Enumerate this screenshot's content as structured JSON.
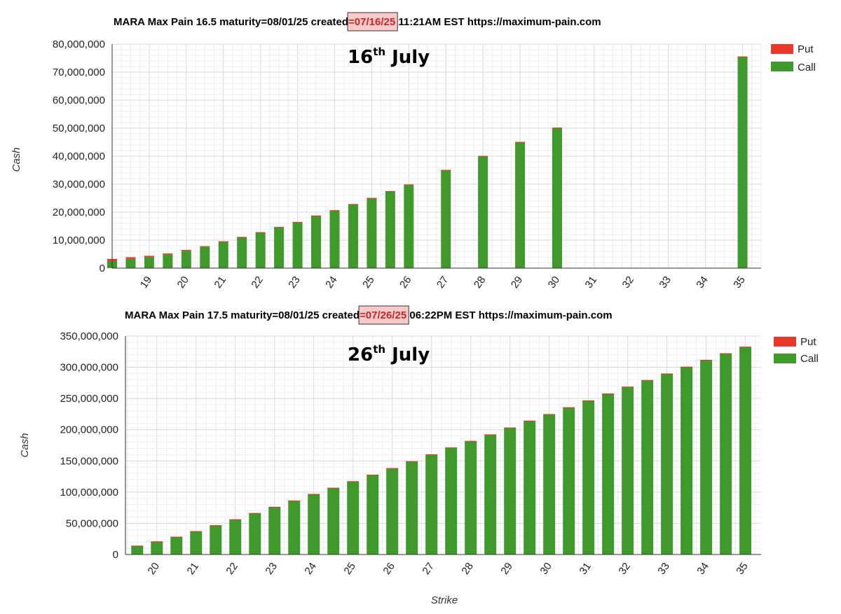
{
  "chart_data": [
    {
      "type": "bar",
      "stacked": true,
      "title_parts": [
        "MARA Max Pain 16.5 maturity=08/01/25 created",
        "=07/16/25",
        " 11:21AM EST https://maximum-pain.com"
      ],
      "annotation": {
        "day": "16",
        "sup": "th",
        "month": " July"
      },
      "highlight_color": "#f8caca",
      "ylabel": "Cash",
      "xlabel": "",
      "ylim": [
        0,
        80000000
      ],
      "yticks": [
        0,
        10000000,
        20000000,
        30000000,
        40000000,
        50000000,
        60000000,
        70000000,
        80000000
      ],
      "ytick_labels": [
        "0",
        "10,000,000",
        "20,000,000",
        "30,000,000",
        "40,000,000",
        "50,000,000",
        "60,000,000",
        "70,000,000",
        "80,000,000"
      ],
      "xlim": [
        18,
        35.5
      ],
      "xtick_labels": [
        "19",
        "20",
        "21",
        "22",
        "23",
        "24",
        "25",
        "26",
        "27",
        "28",
        "29",
        "30",
        "31",
        "32",
        "33",
        "34",
        "35"
      ],
      "x": [
        18,
        18.5,
        19,
        19.5,
        20,
        20.5,
        21,
        21.5,
        22,
        22.5,
        23,
        23.5,
        24,
        24.5,
        25,
        25.5,
        26,
        27,
        28,
        29,
        30,
        35
      ],
      "series": [
        {
          "name": "Put",
          "color": "#e8392b",
          "values": [
            800000,
            600000,
            500000,
            350000,
            300000,
            250000,
            200000,
            150000,
            150000,
            120000,
            100000,
            100000,
            100000,
            100000,
            100000,
            100000,
            100000,
            100000,
            100000,
            100000,
            100000,
            100000
          ]
        },
        {
          "name": "Call",
          "color": "#3f9a2b",
          "values": [
            2500000,
            3300000,
            3900000,
            4900000,
            6200000,
            7600000,
            9400000,
            11000000,
            12700000,
            14600000,
            16400000,
            18700000,
            20600000,
            22800000,
            25000000,
            27400000,
            29800000,
            35000000,
            40000000,
            45000000,
            50100000,
            75500000
          ]
        }
      ],
      "legend_position": "right",
      "grid": true
    },
    {
      "type": "bar",
      "stacked": true,
      "title_parts": [
        "MARA Max Pain 17.5 maturity=08/01/25 created",
        "=07/26/25",
        " 06:22PM EST https://maximum-pain.com"
      ],
      "annotation": {
        "day": "26",
        "sup": "th",
        "month": " July"
      },
      "highlight_color": "#f8caca",
      "ylabel": "Cash",
      "xlabel": "Strike",
      "ylim": [
        0,
        350000000
      ],
      "yticks": [
        0,
        50000000,
        100000000,
        150000000,
        200000000,
        250000000,
        300000000,
        350000000
      ],
      "ytick_labels": [
        "0",
        "50,000,000",
        "100,000,000",
        "150,000,000",
        "200,000,000",
        "250,000,000",
        "300,000,000",
        "350,000,000"
      ],
      "xlim": [
        19.2,
        35.4
      ],
      "xtick_labels": [
        "20",
        "21",
        "22",
        "23",
        "24",
        "25",
        "26",
        "27",
        "28",
        "29",
        "30",
        "31",
        "32",
        "33",
        "34",
        "35"
      ],
      "x": [
        19.5,
        20,
        20.5,
        21,
        21.5,
        22,
        22.5,
        23,
        23.5,
        24,
        24.5,
        25,
        25.5,
        26,
        26.5,
        27,
        27.5,
        28,
        28.5,
        29,
        29.5,
        30,
        30.5,
        31,
        31.5,
        32,
        32.5,
        33,
        33.5,
        34,
        34.5,
        35
      ],
      "series": [
        {
          "name": "Put",
          "color": "#e8392b",
          "values": [
            700000,
            600000,
            500000,
            500000,
            500000,
            500000,
            500000,
            500000,
            500000,
            500000,
            500000,
            500000,
            500000,
            500000,
            500000,
            500000,
            500000,
            500000,
            500000,
            500000,
            500000,
            500000,
            500000,
            500000,
            500000,
            500000,
            500000,
            500000,
            500000,
            500000,
            500000,
            500000
          ]
        },
        {
          "name": "Call",
          "color": "#3f9a2b",
          "values": [
            13500000,
            20500000,
            28000000,
            37000000,
            46500000,
            56000000,
            66000000,
            76000000,
            86000000,
            96500000,
            106500000,
            117000000,
            127500000,
            138000000,
            149000000,
            160000000,
            171000000,
            181500000,
            192000000,
            203000000,
            214000000,
            224500000,
            235500000,
            246500000,
            257500000,
            268500000,
            279000000,
            289500000,
            300500000,
            311500000,
            322000000,
            332500000
          ]
        }
      ],
      "legend_position": "right",
      "grid": true
    }
  ]
}
